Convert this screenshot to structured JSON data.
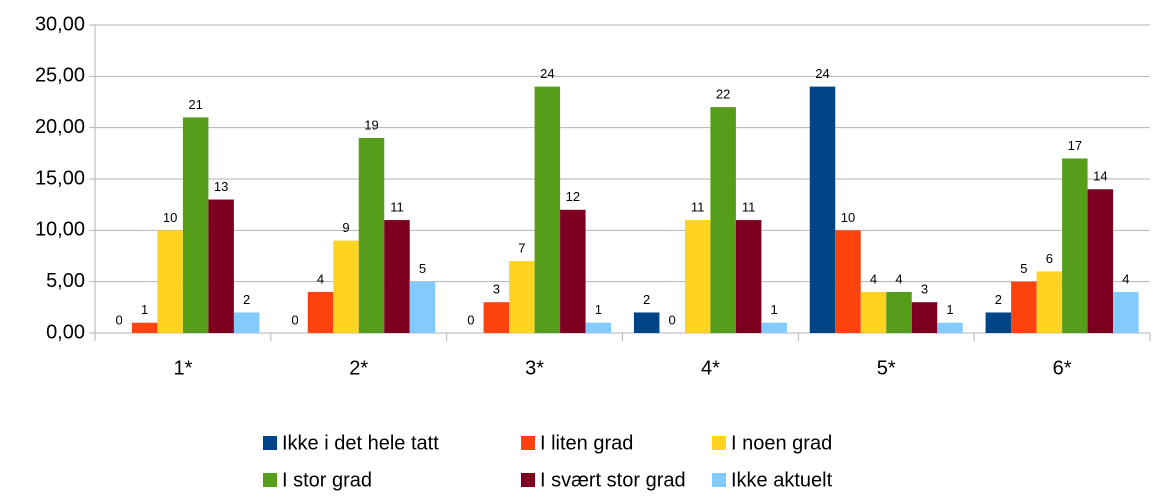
{
  "chart_data": {
    "type": "bar",
    "categories": [
      "1*",
      "2*",
      "3*",
      "4*",
      "5*",
      "6*"
    ],
    "series": [
      {
        "name": "Ikke i det hele tatt",
        "color": "#004586",
        "values": [
          0,
          0,
          0,
          2,
          24,
          2
        ]
      },
      {
        "name": "I liten grad",
        "color": "#ff420e",
        "values": [
          1,
          4,
          3,
          0,
          10,
          5
        ]
      },
      {
        "name": "I noen grad",
        "color": "#ffd320",
        "values": [
          10,
          9,
          7,
          11,
          4,
          6
        ]
      },
      {
        "name": "I stor grad",
        "color": "#579d1c",
        "values": [
          21,
          19,
          24,
          22,
          4,
          17
        ]
      },
      {
        "name": "I svært stor grad",
        "color": "#7e0021",
        "values": [
          13,
          11,
          12,
          11,
          3,
          14
        ]
      },
      {
        "name": "Ikke aktuelt",
        "color": "#83caff",
        "values": [
          2,
          5,
          1,
          1,
          1,
          4
        ]
      }
    ],
    "ylim": [
      0,
      30
    ],
    "yticks": [
      {
        "value": 0,
        "label": "0,00"
      },
      {
        "value": 5,
        "label": "5,00"
      },
      {
        "value": 10,
        "label": "10,00"
      },
      {
        "value": 15,
        "label": "15,00"
      },
      {
        "value": 20,
        "label": "20,00"
      },
      {
        "value": 25,
        "label": "25,00"
      },
      {
        "value": 30,
        "label": "30,00"
      }
    ],
    "grid": true,
    "legend": "bottom"
  }
}
